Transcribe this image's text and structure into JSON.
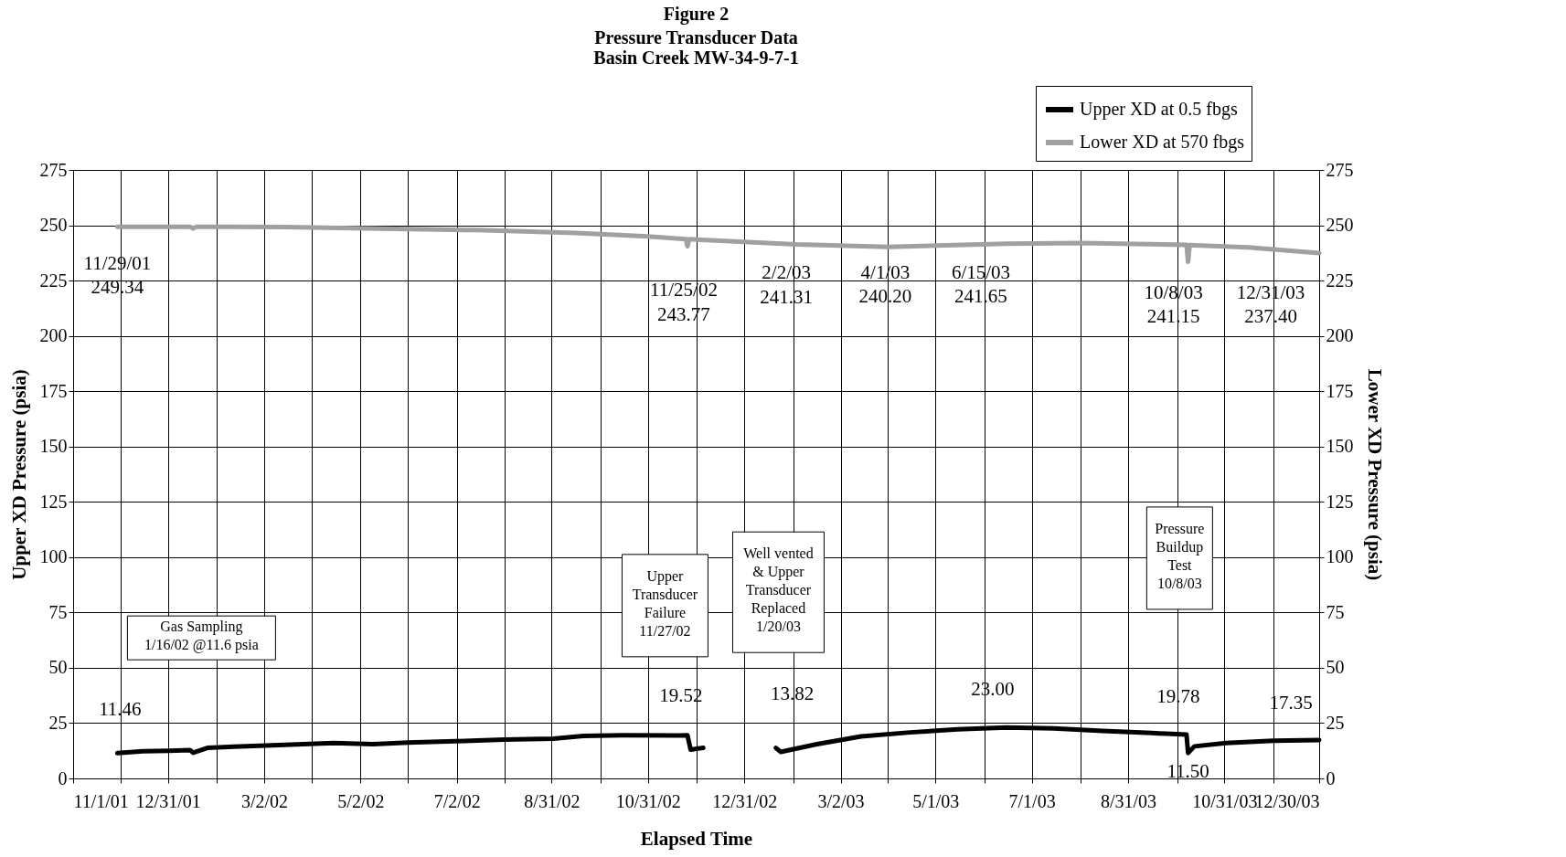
{
  "chart_data": {
    "type": "line",
    "title": "Figure 2",
    "subtitle": "Pressure Transducer Data\nBasin Creek MW-34-9-7-1",
    "xlabel": "Elapsed Time",
    "ylabel": "Upper XD Pressure (psia)",
    "y2label": "Lower XD Pressure (psia)",
    "series": [
      {
        "name": "Upper XD at 0.5 fbgs",
        "color": "#000000",
        "x": [
          "2001-11-29",
          "2001-12-15",
          "2002-01-01",
          "2002-01-14",
          "2002-01-16",
          "2002-01-25",
          "2002-02-15",
          "2002-03-15",
          "2002-04-15",
          "2002-05-10",
          "2002-06-01",
          "2002-07-01",
          "2002-08-01",
          "2002-09-01",
          "2002-09-20",
          "2002-10-15",
          "2002-11-20",
          "2002-11-25",
          "2002-11-27",
          "2002-12-05",
          "2002-12-20",
          "2003-01-20",
          "2003-01-23",
          "2003-02-15",
          "2003-03-15",
          "2003-04-15",
          "2003-05-15",
          "2003-06-15",
          "2003-07-15",
          "2003-08-15",
          "2003-09-15",
          "2003-10-07",
          "2003-10-08",
          "2003-10-12",
          "2003-11-01",
          "2003-12-01",
          "2003-12-30"
        ],
        "values": [
          11.46,
          12.3,
          12.5,
          12.8,
          11.6,
          13.8,
          14.5,
          15.2,
          16.0,
          15.5,
          16.2,
          16.8,
          17.5,
          18.0,
          19.2,
          19.5,
          19.4,
          19.52,
          13.0,
          13.8,
          null,
          13.82,
          12.0,
          15.5,
          19.0,
          20.8,
          22.2,
          23.0,
          22.6,
          21.5,
          20.5,
          19.78,
          11.5,
          14.5,
          16.0,
          17.0,
          17.35
        ]
      },
      {
        "name": "Lower XD at 570 fbgs",
        "color": "#a0a0a0",
        "axis": "y2",
        "x": [
          "2001-11-29",
          "2002-01-14",
          "2002-01-16",
          "2002-01-18",
          "2002-03-15",
          "2002-05-15",
          "2002-07-15",
          "2002-09-15",
          "2002-10-31",
          "2002-11-24",
          "2002-11-25",
          "2002-11-26",
          "2002-12-31",
          "2003-02-02",
          "2003-04-01",
          "2003-06-15",
          "2003-08-01",
          "2003-10-07",
          "2003-10-08",
          "2003-10-09",
          "2003-11-15",
          "2003-12-30"
        ],
        "values": [
          249.34,
          249.3,
          248.5,
          249.3,
          249.2,
          248.5,
          247.8,
          246.5,
          245.0,
          243.77,
          240.5,
          243.7,
          242.5,
          241.31,
          240.2,
          241.65,
          242.0,
          241.15,
          233.5,
          241.0,
          240.0,
          237.4
        ]
      }
    ],
    "xlim": [
      "2001-11-01",
      "2003-12-30"
    ],
    "xticks": [
      {
        "value": "2001-11-01",
        "label": "11/1/01"
      },
      {
        "value": "2001-12-01",
        "label": null
      },
      {
        "value": "2001-12-31",
        "label": "12/31/01"
      },
      {
        "value": "2002-01-31",
        "label": null
      },
      {
        "value": "2002-03-02",
        "label": "3/2/02"
      },
      {
        "value": "2002-04-01",
        "label": null
      },
      {
        "value": "2002-05-02",
        "label": "5/2/02"
      },
      {
        "value": "2002-06-01",
        "label": null
      },
      {
        "value": "2002-07-02",
        "label": "7/2/02"
      },
      {
        "value": "2002-08-01",
        "label": null
      },
      {
        "value": "2002-08-31",
        "label": "8/31/02"
      },
      {
        "value": "2002-10-01",
        "label": null
      },
      {
        "value": "2002-10-31",
        "label": "10/31/02"
      },
      {
        "value": "2002-12-01",
        "label": null
      },
      {
        "value": "2002-12-31",
        "label": "12/31/02"
      },
      {
        "value": "2003-01-31",
        "label": null
      },
      {
        "value": "2003-03-02",
        "label": "3/2/03"
      },
      {
        "value": "2003-04-01",
        "label": null
      },
      {
        "value": "2003-05-01",
        "label": "5/1/03"
      },
      {
        "value": "2003-06-01",
        "label": null
      },
      {
        "value": "2003-07-01",
        "label": "7/1/03"
      },
      {
        "value": "2003-08-01",
        "label": null
      },
      {
        "value": "2003-08-31",
        "label": "8/31/03"
      },
      {
        "value": "2003-10-01",
        "label": null
      },
      {
        "value": "2003-10-31",
        "label": "10/31/03"
      },
      {
        "value": "2003-12-01",
        "label": null
      },
      {
        "value": "2003-12-30",
        "label": "12/30/03"
      }
    ],
    "ylim": [
      0,
      275
    ],
    "yticks": [
      0,
      25,
      50,
      75,
      100,
      125,
      150,
      175,
      200,
      225,
      250,
      275
    ],
    "y2lim": [
      0,
      275
    ],
    "y2ticks": [
      0,
      25,
      50,
      75,
      100,
      125,
      150,
      175,
      200,
      225,
      250,
      275
    ],
    "grid": true,
    "legend": "top right",
    "annotations": [
      {
        "text": "11/29/01\n249.34",
        "x": "2001-11-29",
        "y": 249.34
      },
      {
        "text": "11/25/02\n243.77",
        "x": "2002-11-25",
        "y": 243.77
      },
      {
        "text": "2/2/03\n241.31",
        "x": "2003-02-02",
        "y": 241.31
      },
      {
        "text": "4/1/03\n240.20",
        "x": "2003-04-01",
        "y": 240.2
      },
      {
        "text": "6/15/03\n241.65",
        "x": "2003-06-15",
        "y": 241.65
      },
      {
        "text": "10/8/03\n241.15",
        "x": "2003-10-08",
        "y": 241.15
      },
      {
        "text": "12/31/03\n237.40",
        "x": "2003-12-30",
        "y": 237.4
      },
      "Pressure\nBuildup\nTest\n10/8/03",
      "Well vented\n& Upper\nTransducer\nReplaced\n1/20/03",
      "Upper\nTransducer\nFailure\n11/27/02",
      "Gas Sampling\n1/16/02 @11.6 psia",
      {
        "text": "11.46",
        "x": "2001-11-29",
        "y": 11.46
      },
      {
        "text": "19.52",
        "x": "2002-11-25",
        "y": 19.52
      },
      {
        "text": "13.82",
        "x": "2003-01-20",
        "y": 13.82
      },
      {
        "text": "23.00",
        "x": "2003-06-15",
        "y": 23.0
      },
      {
        "text": "19.78",
        "x": "2003-10-07",
        "y": 19.78
      },
      {
        "text": "17.35",
        "x": "2003-12-30",
        "y": 17.35
      },
      {
        "text": "11.50",
        "x": "2003-10-08",
        "y": 11.5
      }
    ]
  }
}
